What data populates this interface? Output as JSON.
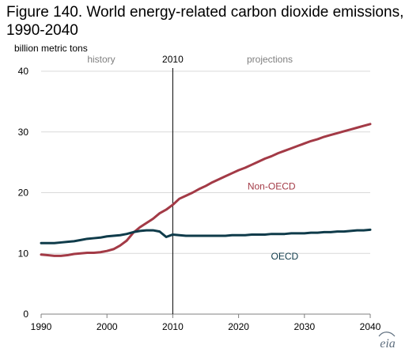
{
  "figure": {
    "title": "Figure 140. World energy-related carbon dioxide emissions, 1990-2040",
    "unit_label": "billion metric tons",
    "logo_text": "eia",
    "colors": {
      "background": "#ffffff",
      "gridline": "#d9d9d9",
      "axis": "#7f7f7f",
      "divider": "#000000",
      "non_oecd": "#a33a46",
      "oecd": "#0f3b4a",
      "annotation": "#7f7f7f"
    }
  },
  "chart_data": {
    "type": "line",
    "title": "Figure 140. World energy-related carbon dioxide emissions, 1990-2040",
    "xlabel": "",
    "ylabel": "billion metric tons",
    "xlim": [
      1990,
      2040
    ],
    "ylim": [
      0,
      40
    ],
    "x_ticks": [
      "1990",
      "2000",
      "2010",
      "2020",
      "2030",
      "2040"
    ],
    "y_ticks": [
      "0",
      "10",
      "20",
      "30",
      "40"
    ],
    "grid": true,
    "annotations": {
      "history": "history",
      "projections": "projections",
      "divider_year": "2010",
      "divider_label": "2010"
    },
    "x": [
      1990,
      1991,
      1992,
      1993,
      1994,
      1995,
      1996,
      1997,
      1998,
      1999,
      2000,
      2001,
      2002,
      2003,
      2004,
      2005,
      2006,
      2007,
      2008,
      2009,
      2010,
      2011,
      2012,
      2013,
      2014,
      2015,
      2016,
      2017,
      2018,
      2019,
      2020,
      2021,
      2022,
      2023,
      2024,
      2025,
      2026,
      2027,
      2028,
      2029,
      2030,
      2031,
      2032,
      2033,
      2034,
      2035,
      2036,
      2037,
      2038,
      2039,
      2040
    ],
    "series": [
      {
        "name": "Non-OECD",
        "color": "#a33a46",
        "label": "Non-OECD",
        "values": [
          9.8,
          9.7,
          9.6,
          9.6,
          9.7,
          9.9,
          10.0,
          10.1,
          10.1,
          10.2,
          10.4,
          10.7,
          11.3,
          12.1,
          13.4,
          14.3,
          15.0,
          15.7,
          16.6,
          17.2,
          18.0,
          19.0,
          19.5,
          20.0,
          20.6,
          21.1,
          21.7,
          22.2,
          22.7,
          23.2,
          23.7,
          24.1,
          24.6,
          25.1,
          25.6,
          26.0,
          26.5,
          26.9,
          27.3,
          27.7,
          28.1,
          28.5,
          28.8,
          29.2,
          29.5,
          29.8,
          30.1,
          30.4,
          30.7,
          31.0,
          31.3
        ]
      },
      {
        "name": "OECD",
        "color": "#0f3b4a",
        "label": "OECD",
        "values": [
          11.7,
          11.7,
          11.7,
          11.8,
          11.9,
          12.0,
          12.2,
          12.4,
          12.5,
          12.6,
          12.8,
          12.9,
          13.0,
          13.2,
          13.5,
          13.7,
          13.8,
          13.8,
          13.6,
          12.7,
          13.1,
          13.0,
          12.9,
          12.9,
          12.9,
          12.9,
          12.9,
          12.9,
          12.9,
          13.0,
          13.0,
          13.0,
          13.1,
          13.1,
          13.1,
          13.2,
          13.2,
          13.2,
          13.3,
          13.3,
          13.3,
          13.4,
          13.4,
          13.5,
          13.5,
          13.6,
          13.6,
          13.7,
          13.8,
          13.8,
          13.9
        ]
      }
    ]
  }
}
